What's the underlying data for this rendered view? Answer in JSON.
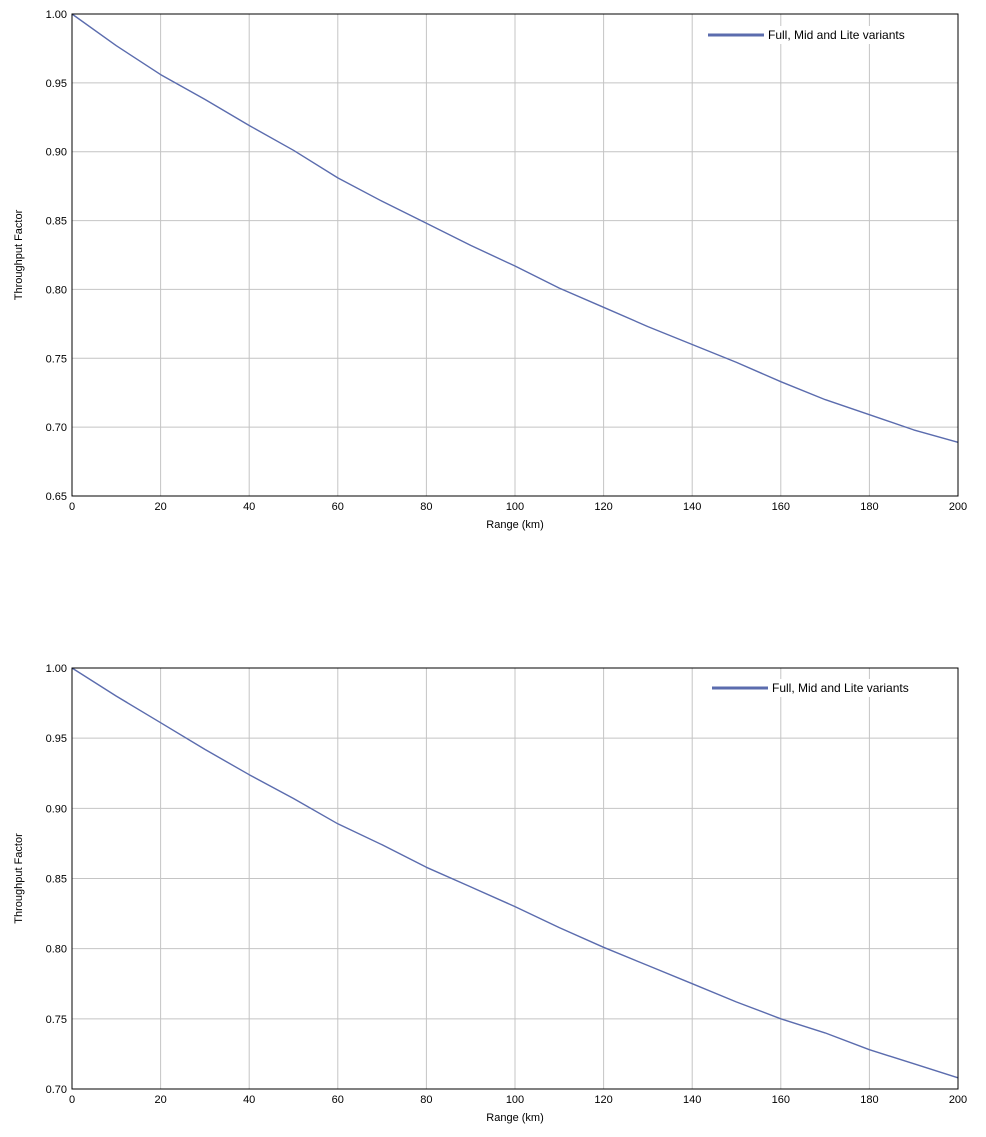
{
  "chart_data": [
    {
      "type": "line",
      "title": "",
      "xlabel": "Range (km)",
      "ylabel": "Throughput Factor",
      "xlim": [
        0,
        200
      ],
      "ylim": [
        0.65,
        1.0
      ],
      "xticks": [
        0,
        20,
        40,
        60,
        80,
        100,
        120,
        140,
        160,
        180,
        200
      ],
      "xtick_labels": [
        "0",
        "20",
        "40",
        "60",
        "80",
        "100",
        "120",
        "140",
        "160",
        "180",
        "200"
      ],
      "yticks": [
        0.65,
        0.7,
        0.75,
        0.8,
        0.85,
        0.9,
        0.95,
        1.0
      ],
      "ytick_labels": [
        "0.65",
        "0.70",
        "0.75",
        "0.80",
        "0.85",
        "0.90",
        "0.95",
        "1.00"
      ],
      "grid": true,
      "legend": "top-right",
      "series": [
        {
          "name": "Full, Mid and Lite variants",
          "color": "#5b6cae",
          "x": [
            0,
            10,
            20,
            30,
            40,
            50,
            60,
            70,
            80,
            90,
            100,
            110,
            120,
            130,
            140,
            150,
            160,
            170,
            180,
            190,
            200
          ],
          "y": [
            1.0,
            0.977,
            0.956,
            0.938,
            0.919,
            0.901,
            0.881,
            0.864,
            0.848,
            0.832,
            0.817,
            0.801,
            0.787,
            0.773,
            0.76,
            0.747,
            0.733,
            0.72,
            0.709,
            0.698,
            0.689
          ]
        }
      ]
    },
    {
      "type": "line",
      "title": "",
      "xlabel": "Range (km)",
      "ylabel": "Throughput Factor",
      "xlim": [
        0,
        200
      ],
      "ylim": [
        0.7,
        1.0
      ],
      "xticks": [
        0,
        20,
        40,
        60,
        80,
        100,
        120,
        140,
        160,
        180,
        200
      ],
      "xtick_labels": [
        "0",
        "20",
        "40",
        "60",
        "80",
        "100",
        "120",
        "140",
        "160",
        "180",
        "200"
      ],
      "yticks": [
        0.7,
        0.75,
        0.8,
        0.85,
        0.9,
        0.95,
        1.0
      ],
      "ytick_labels": [
        "0.70",
        "0.75",
        "0.80",
        "0.85",
        "0.90",
        "0.95",
        "1.00"
      ],
      "grid": true,
      "legend": "top-right",
      "series": [
        {
          "name": "Full, Mid and Lite variants",
          "color": "#5b6cae",
          "x": [
            0,
            10,
            20,
            30,
            40,
            50,
            60,
            70,
            80,
            90,
            100,
            110,
            120,
            130,
            140,
            150,
            160,
            170,
            180,
            190,
            200
          ],
          "y": [
            1.0,
            0.98,
            0.961,
            0.942,
            0.924,
            0.907,
            0.889,
            0.874,
            0.858,
            0.844,
            0.83,
            0.815,
            0.801,
            0.788,
            0.775,
            0.762,
            0.75,
            0.74,
            0.728,
            0.718,
            0.708
          ]
        }
      ]
    }
  ]
}
